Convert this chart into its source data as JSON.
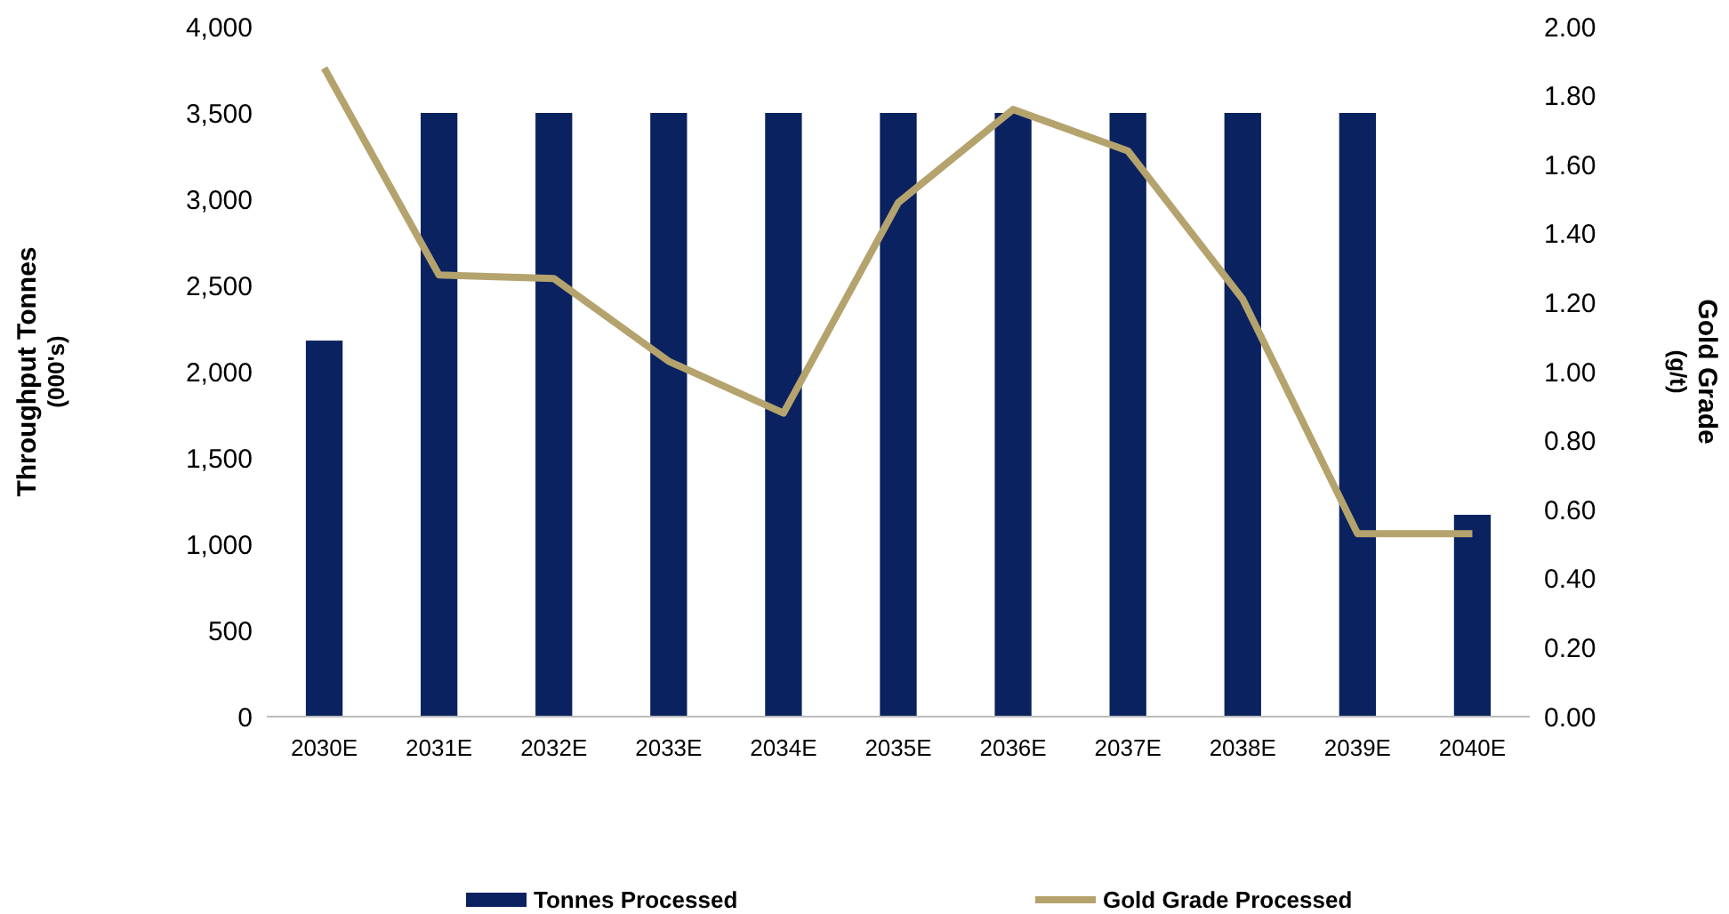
{
  "chart_data": {
    "type": "bar",
    "categories": [
      "2030E",
      "2031E",
      "2032E",
      "2033E",
      "2034E",
      "2035E",
      "2036E",
      "2037E",
      "2038E",
      "2039E",
      "2040E"
    ],
    "series": [
      {
        "name": "Tonnes Processed",
        "color": "#0b2260",
        "values": [
          2180,
          3500,
          3500,
          3500,
          3500,
          3500,
          3500,
          3500,
          3500,
          3500,
          1170
        ]
      },
      {
        "name": "Gold Grade Processed",
        "type": "line",
        "axis": "y2",
        "color": "#b5a36e",
        "values": [
          1.88,
          1.28,
          1.27,
          1.03,
          0.88,
          1.49,
          1.76,
          1.64,
          1.21,
          0.53,
          0.53
        ]
      }
    ],
    "ylabel": "Throughput Tonnes\n(000's)",
    "y2label": "Gold Grade\n(g/t)",
    "ylim": [
      0,
      4000
    ],
    "yticks": [
      {
        "value": 0,
        "label": "0"
      },
      {
        "value": 500,
        "label": "500"
      },
      {
        "value": 1000,
        "label": "1,000"
      },
      {
        "value": 1500,
        "label": "1,500"
      },
      {
        "value": 2000,
        "label": "2,000"
      },
      {
        "value": 2500,
        "label": "2,500"
      },
      {
        "value": 3000,
        "label": "3,000"
      },
      {
        "value": 3500,
        "label": "3,500"
      },
      {
        "value": 4000,
        "label": "4,000"
      }
    ],
    "y2lim": [
      0,
      2
    ],
    "y2ticks": [
      {
        "value": 0,
        "label": "0.00"
      },
      {
        "value": 0.2,
        "label": "0.20"
      },
      {
        "value": 0.4,
        "label": "0.40"
      },
      {
        "value": 0.6,
        "label": "0.60"
      },
      {
        "value": 0.8,
        "label": "0.80"
      },
      {
        "value": 1,
        "label": "1.00"
      },
      {
        "value": 1.2,
        "label": "1.20"
      },
      {
        "value": 1.4,
        "label": "1.40"
      },
      {
        "value": 1.6,
        "label": "1.60"
      },
      {
        "value": 1.8,
        "label": "1.80"
      },
      {
        "value": 2,
        "label": "2.00"
      }
    ],
    "legend": "bottom",
    "line_style": "solid",
    "marker": "none"
  }
}
